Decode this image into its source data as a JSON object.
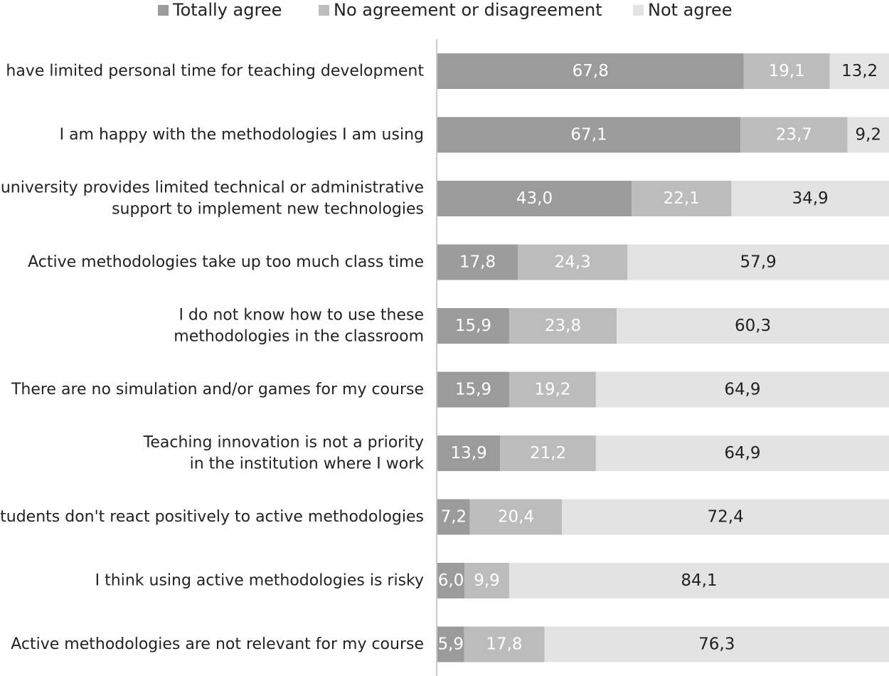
{
  "chart_data": {
    "type": "bar",
    "orientation": "horizontal",
    "stacked": true,
    "percent_stacked": true,
    "title": "",
    "xlabel": "",
    "ylabel": "",
    "xlim": [
      0,
      100
    ],
    "grid": false,
    "legend_position": "top",
    "categories": [
      [
        "I have limited personal time for teaching development"
      ],
      [
        "I am happy with the methodologies I am using"
      ],
      [
        "My university provides limited technical or administrative",
        "support to implement new technologies"
      ],
      [
        "Active methodologies take up too much class time"
      ],
      [
        "I do not know how to use these",
        "methodologies in the classroom"
      ],
      [
        "There are no simulation and/or games for my course"
      ],
      [
        "Teaching innovation is not a priority",
        "in the institution where I work"
      ],
      [
        "Students don't react positively to active methodologies"
      ],
      [
        "I think using active methodologies is risky"
      ],
      [
        "Active methodologies are not relevant for my course"
      ]
    ],
    "series": [
      {
        "name": "Totally agree",
        "color": "#9b9b9b",
        "label_color": "#ffffff",
        "values": [
          67.8,
          67.1,
          43.0,
          17.8,
          15.9,
          15.9,
          13.9,
          7.2,
          6.0,
          5.9
        ],
        "labels": [
          "67,8",
          "67,1",
          "43,0",
          "17,8",
          "15,9",
          "15,9",
          "13,9",
          "7,2",
          "6,0",
          "5,9"
        ]
      },
      {
        "name": "No agreement or disagreement",
        "color": "#bcbcbc",
        "label_color": "#ffffff",
        "values": [
          19.1,
          23.7,
          22.1,
          24.3,
          23.8,
          19.2,
          21.2,
          20.4,
          9.9,
          17.8
        ],
        "labels": [
          "19,1",
          "23,7",
          "22,1",
          "24,3",
          "23,8",
          "19,2",
          "21,2",
          "20,4",
          "9,9",
          "17,8"
        ]
      },
      {
        "name": "Not agree",
        "color": "#e3e3e3",
        "label_color": "#222222",
        "values": [
          13.2,
          9.2,
          34.9,
          57.9,
          60.3,
          64.9,
          64.9,
          72.4,
          84.1,
          76.3
        ],
        "labels": [
          "13,2",
          "9,2",
          "34,9",
          "57,9",
          "60,3",
          "64,9",
          "64,9",
          "72,4",
          "84,1",
          "76,3"
        ]
      }
    ],
    "axis_color": "#cccccc"
  }
}
